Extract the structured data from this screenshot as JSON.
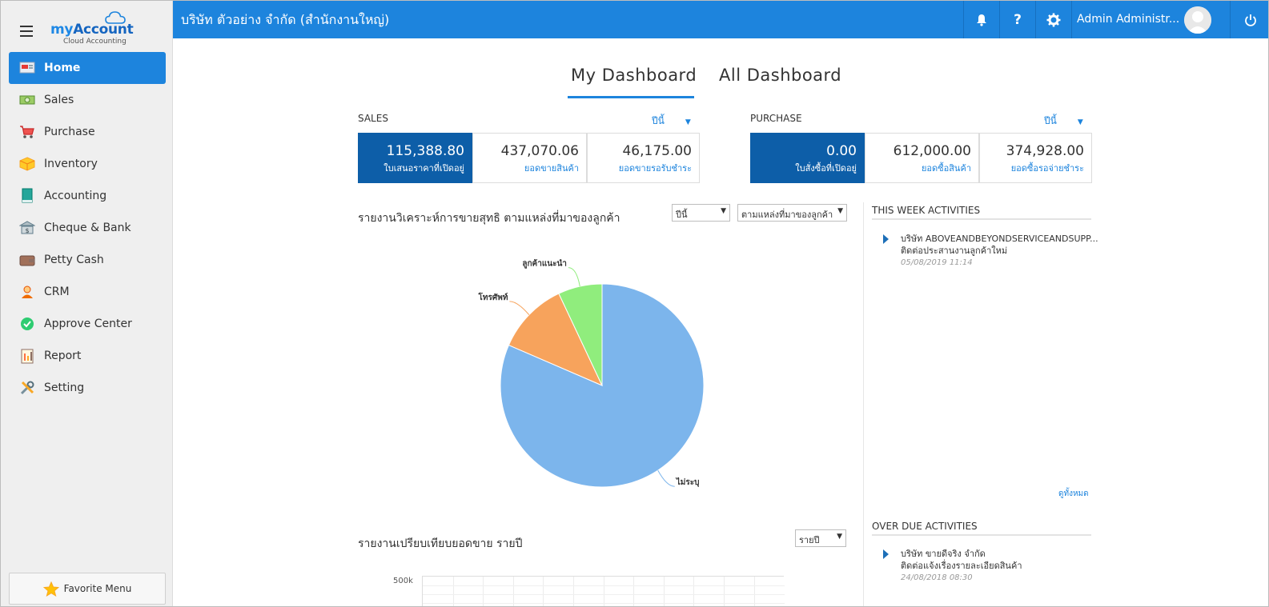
{
  "sidebar": {
    "logo": {
      "brand_prefix": "my",
      "brand_main": "Account",
      "tagline": "Cloud Accounting"
    },
    "items": [
      {
        "label": "Home",
        "icon": "home-icon",
        "active": true
      },
      {
        "label": "Sales",
        "icon": "money-icon",
        "active": false
      },
      {
        "label": "Purchase",
        "icon": "cart-icon",
        "active": false
      },
      {
        "label": "Inventory",
        "icon": "box-icon",
        "active": false
      },
      {
        "label": "Accounting",
        "icon": "book-icon",
        "active": false
      },
      {
        "label": "Cheque & Bank",
        "icon": "bank-icon",
        "active": false
      },
      {
        "label": "Petty Cash",
        "icon": "wallet-icon",
        "active": false
      },
      {
        "label": "CRM",
        "icon": "people-icon",
        "active": false
      },
      {
        "label": "Approve Center",
        "icon": "check-icon",
        "active": false
      },
      {
        "label": "Report",
        "icon": "report-icon",
        "active": false
      },
      {
        "label": "Setting",
        "icon": "tools-icon",
        "active": false
      }
    ],
    "favorite_label": "Favorite Menu"
  },
  "topbar": {
    "company": "บริษัท ตัวอย่าง จำกัด (สำนักงานใหญ่)",
    "username": "Admin Administr...",
    "colors": {
      "bar": "#1d84dd"
    }
  },
  "dashboard": {
    "tabs": [
      {
        "label": "My Dashboard",
        "active": true
      },
      {
        "label": "All Dashboard",
        "active": false
      }
    ],
    "sales": {
      "title": "SALES",
      "period": "ปีนี้",
      "cards": [
        {
          "value": "115,388.80",
          "caption": "ใบเสนอราคาที่เปิดอยู่"
        },
        {
          "value": "437,070.06",
          "caption": "ยอดขายสินค้า"
        },
        {
          "value": "46,175.00",
          "caption": "ยอดขายรอรับชำระ"
        }
      ]
    },
    "purchase": {
      "title": "PURCHASE",
      "period": "ปีนี้",
      "cards": [
        {
          "value": "0.00",
          "caption": "ใบสั่งซื้อที่เปิดอยู่"
        },
        {
          "value": "612,000.00",
          "caption": "ยอดซื้อสินค้า"
        },
        {
          "value": "374,928.00",
          "caption": "ยอดซื้อรอจ่ายชำระ"
        }
      ]
    },
    "pie_report": {
      "title": "รายงานวิเคราะห์การขายสุทธิ ตามแหล่งที่มาของลูกค้า",
      "period_select": "ปีนี้",
      "source_select": "ตามแหล่งที่มาของลูกค้า"
    },
    "bar_report": {
      "title": "รายงานเปรียบเทียบยอดขาย รายปี",
      "period_select": "รายปี",
      "y_tick_top": "500k"
    },
    "this_week": {
      "header": "THIS WEEK ACTIVITIES",
      "items": [
        {
          "line1": "บริษัท ABOVEANDBEYONDSERVICEANDSUPP...",
          "line2": "ติดต่อประสานงานลูกค้าใหม่",
          "time": "05/08/2019 11:14"
        }
      ],
      "see_all": "ดูทั้งหมด"
    },
    "overdue": {
      "header": "OVER DUE ACTIVITIES",
      "items": [
        {
          "line1": "บริษัท ขายดีจริง จำกัด",
          "line2": "ติดต่อแจ้งเรื่องรายละเอียดสินค้า",
          "time": "24/08/2018 08:30"
        }
      ]
    }
  },
  "chart_data": {
    "type": "pie",
    "slices": [
      {
        "label": "ไม่ระบุ",
        "value": 81.5,
        "color": "#7cb5ec"
      },
      {
        "label": "โทรศัพท์",
        "value": 11.5,
        "color": "#f7a35c"
      },
      {
        "label": "ลูกค้าแนะนำ",
        "value": 7.0,
        "color": "#90ed7d"
      }
    ],
    "title": "รายงานวิเคราะห์การขายสุทธิ ตามแหล่งที่มาของลูกค้า"
  }
}
